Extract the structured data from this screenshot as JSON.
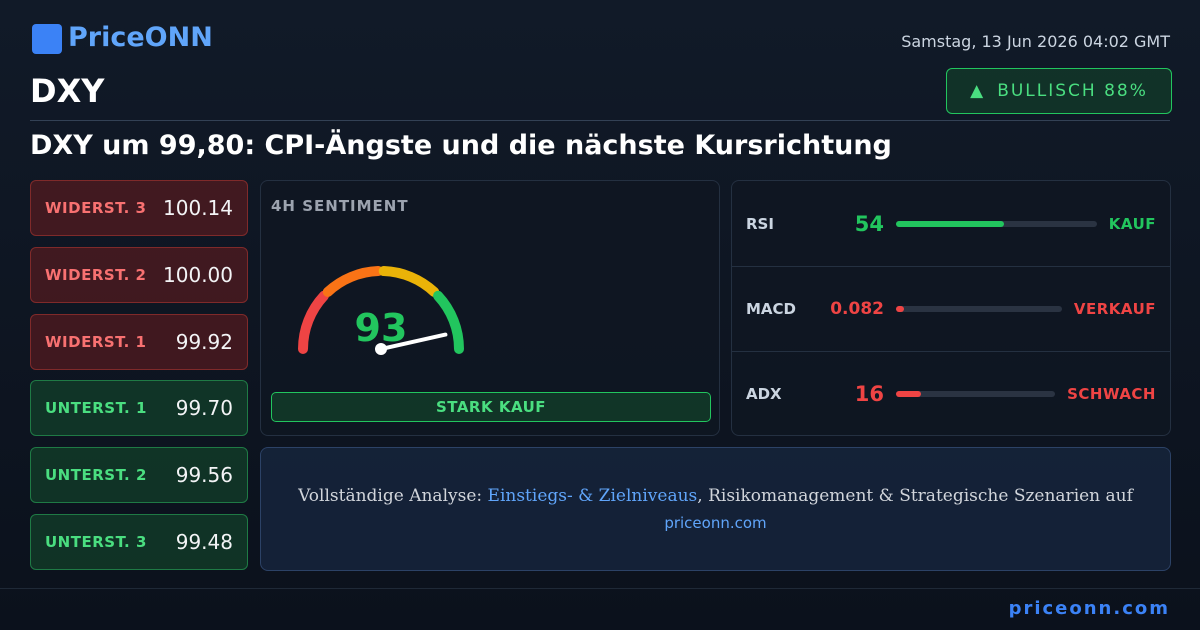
{
  "header": {
    "logo": "PriceONN",
    "date": "Samstag, 13 Jun 2026 04:02 GMT",
    "symbol": "DXY",
    "badge": "BULLISCH 88%",
    "title": "DXY um 99,80: CPI-Ängste und die nächste Kursrichtung"
  },
  "levels": [
    {
      "label": "WIDERST. 3",
      "value": "100.14",
      "kind": "resistance"
    },
    {
      "label": "WIDERST. 2",
      "value": "100.00",
      "kind": "resistance"
    },
    {
      "label": "WIDERST. 1",
      "value": "99.92",
      "kind": "resistance"
    },
    {
      "label": "UNTERST. 1",
      "value": "99.70",
      "kind": "support"
    },
    {
      "label": "UNTERST. 2",
      "value": "99.56",
      "kind": "support"
    },
    {
      "label": "UNTERST. 3",
      "value": "99.48",
      "kind": "support"
    }
  ],
  "gauge": {
    "title": "4H SENTIMENT",
    "value": 93,
    "verdict": "STARK KAUF"
  },
  "indicators": [
    {
      "name": "RSI",
      "value": 54,
      "signal": "KAUF",
      "color": "#22c55e"
    },
    {
      "name": "MACD",
      "value": 0.082,
      "signal": "VERKAUF",
      "color": "#ef4444"
    },
    {
      "name": "ADX",
      "value": 16,
      "signal": "SCHWACH",
      "color": "#ef4444"
    }
  ],
  "cta": {
    "prefix": "Vollständige Analyse: ",
    "link": "Einstiegs- & Zielniveaus",
    "suffix": ", Risikomanagement & Strategische Szenarien auf",
    "site": "priceonn.com"
  },
  "footer": {
    "site": "priceonn.com"
  }
}
